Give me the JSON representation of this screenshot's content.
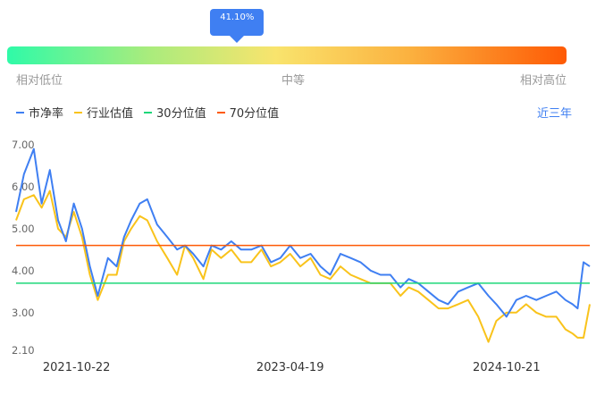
{
  "gauge": {
    "percentile_label": "41.10%",
    "percentile": 0.411,
    "low_label": "相对低位",
    "mid_label": "中等",
    "high_label": "相对高位"
  },
  "period_label": "近三年",
  "colors": {
    "pb": "#3f7ff2",
    "industry": "#f9c31b",
    "p30": "#1ed779",
    "p70": "#fe5a05"
  },
  "chart_data": {
    "type": "line",
    "x_ticks": [
      "2021-10-22",
      "2023-04-19",
      "2024-10-21"
    ],
    "y_ticks": [
      "7.00",
      "6.00",
      "5.00",
      "4.00",
      "3.00",
      "2.10"
    ],
    "ylim": [
      2.1,
      7.0
    ],
    "x_range": [
      "2021-05-21",
      "2025-05-21"
    ],
    "legend": [
      "市净率",
      "行业估值",
      "30分位值",
      "70分位值"
    ],
    "p30": 3.7,
    "p70": 4.6,
    "series": [
      {
        "name": "市净率",
        "color": "#3f7ff2",
        "x": [
          "2021-05-21",
          "2021-06-10",
          "2021-07-05",
          "2021-07-25",
          "2021-08-15",
          "2021-09-05",
          "2021-09-25",
          "2021-10-15",
          "2021-11-05",
          "2021-11-25",
          "2021-12-15",
          "2022-01-10",
          "2022-02-01",
          "2022-02-20",
          "2022-03-10",
          "2022-04-01",
          "2022-04-20",
          "2022-05-15",
          "2022-06-10",
          "2022-07-05",
          "2022-07-25",
          "2022-08-15",
          "2022-09-10",
          "2022-10-01",
          "2022-10-25",
          "2022-11-20",
          "2022-12-15",
          "2023-01-10",
          "2023-02-05",
          "2023-03-01",
          "2023-03-25",
          "2023-04-19",
          "2023-05-15",
          "2023-06-10",
          "2023-07-05",
          "2023-07-30",
          "2023-08-25",
          "2023-09-20",
          "2023-10-15",
          "2023-11-10",
          "2023-12-05",
          "2023-12-30",
          "2024-01-25",
          "2024-02-15",
          "2024-03-10",
          "2024-04-05",
          "2024-05-01",
          "2024-05-25",
          "2024-06-20",
          "2024-07-15",
          "2024-08-10",
          "2024-09-05",
          "2024-09-25",
          "2024-10-21",
          "2024-11-15",
          "2024-12-10",
          "2025-01-05",
          "2025-01-30",
          "2025-02-25",
          "2025-03-20",
          "2025-04-07",
          "2025-04-20",
          "2025-05-05",
          "2025-05-21"
        ],
        "y": [
          5.4,
          6.3,
          6.9,
          5.6,
          6.4,
          5.2,
          4.7,
          5.6,
          5.0,
          4.1,
          3.4,
          4.3,
          4.1,
          4.8,
          5.2,
          5.6,
          5.7,
          5.1,
          4.8,
          4.5,
          4.6,
          4.4,
          4.1,
          4.6,
          4.5,
          4.7,
          4.5,
          4.5,
          4.6,
          4.2,
          4.3,
          4.6,
          4.3,
          4.4,
          4.1,
          3.9,
          4.4,
          4.3,
          4.2,
          4.0,
          3.9,
          3.9,
          3.6,
          3.8,
          3.7,
          3.5,
          3.3,
          3.2,
          3.5,
          3.6,
          3.7,
          3.4,
          3.2,
          2.9,
          3.3,
          3.4,
          3.3,
          3.4,
          3.5,
          3.3,
          3.2,
          3.1,
          4.2,
          4.1
        ]
      },
      {
        "name": "行业估值",
        "color": "#f9c31b",
        "x": [
          "2021-05-21",
          "2021-06-10",
          "2021-07-05",
          "2021-07-25",
          "2021-08-15",
          "2021-09-05",
          "2021-09-25",
          "2021-10-15",
          "2021-11-05",
          "2021-11-25",
          "2021-12-15",
          "2022-01-10",
          "2022-02-01",
          "2022-02-20",
          "2022-03-10",
          "2022-04-01",
          "2022-04-20",
          "2022-05-15",
          "2022-06-10",
          "2022-07-05",
          "2022-07-25",
          "2022-08-15",
          "2022-09-10",
          "2022-10-01",
          "2022-10-25",
          "2022-11-20",
          "2022-12-15",
          "2023-01-10",
          "2023-02-05",
          "2023-03-01",
          "2023-03-25",
          "2023-04-19",
          "2023-05-15",
          "2023-06-10",
          "2023-07-05",
          "2023-07-30",
          "2023-08-25",
          "2023-09-20",
          "2023-10-15",
          "2023-11-10",
          "2023-12-05",
          "2023-12-30",
          "2024-01-25",
          "2024-02-15",
          "2024-03-10",
          "2024-04-05",
          "2024-05-01",
          "2024-05-25",
          "2024-06-20",
          "2024-07-15",
          "2024-08-10",
          "2024-09-05",
          "2024-09-25",
          "2024-10-21",
          "2024-11-15",
          "2024-12-10",
          "2025-01-05",
          "2025-01-30",
          "2025-02-25",
          "2025-03-20",
          "2025-04-07",
          "2025-04-20",
          "2025-05-05",
          "2025-05-21"
        ],
        "y": [
          5.2,
          5.7,
          5.8,
          5.5,
          5.9,
          5.0,
          4.8,
          5.4,
          4.8,
          3.9,
          3.3,
          3.9,
          3.9,
          4.7,
          5.0,
          5.3,
          5.2,
          4.7,
          4.3,
          3.9,
          4.6,
          4.3,
          3.8,
          4.5,
          4.3,
          4.5,
          4.2,
          4.2,
          4.5,
          4.1,
          4.2,
          4.4,
          4.1,
          4.3,
          3.9,
          3.8,
          4.1,
          3.9,
          3.8,
          3.7,
          3.7,
          3.7,
          3.4,
          3.6,
          3.5,
          3.3,
          3.1,
          3.1,
          3.2,
          3.3,
          2.9,
          2.3,
          2.8,
          3.0,
          3.0,
          3.2,
          3.0,
          2.9,
          2.9,
          2.6,
          2.5,
          2.4,
          2.4,
          3.2
        ]
      }
    ]
  }
}
